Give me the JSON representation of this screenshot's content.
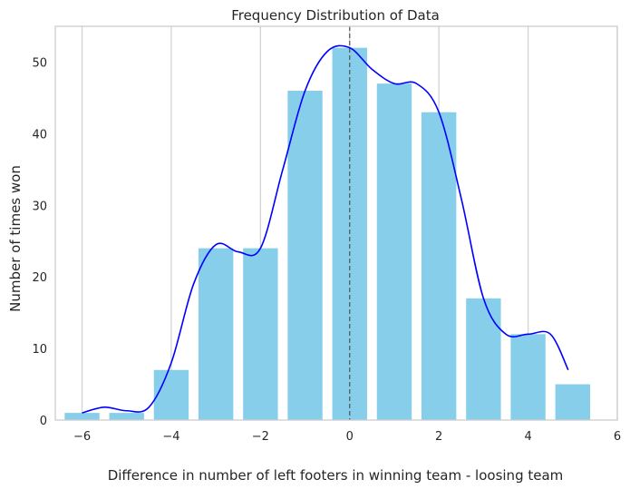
{
  "chart_data": {
    "type": "bar",
    "title": "Frequency Distribution of Data",
    "xlabel": "Difference in number of left footers in winning team - loosing team",
    "ylabel": "Number of times won",
    "x": [
      -6,
      -5,
      -4,
      -3,
      -2,
      -1,
      0,
      1,
      2,
      3,
      4,
      5
    ],
    "values": [
      1,
      1,
      7,
      24,
      24,
      46,
      52,
      47,
      43,
      17,
      12,
      5
    ],
    "xlim": [
      -6.6,
      6
    ],
    "ylim": [
      0,
      55
    ],
    "xticks": [
      -6,
      -4,
      -2,
      0,
      2,
      4,
      6
    ],
    "xtick_labels": [
      "−6",
      "−4",
      "−2",
      "0",
      "2",
      "4",
      "6"
    ],
    "yticks": [
      0,
      10,
      20,
      30,
      40,
      50
    ],
    "ytick_labels": [
      "0",
      "10",
      "20",
      "30",
      "40",
      "50"
    ],
    "grid": "vertical",
    "reference_line_x": 0,
    "kde": {
      "x": [
        -6,
        -5.5,
        -5,
        -4.5,
        -4,
        -3.5,
        -3,
        -2.5,
        -2,
        -1.5,
        -1,
        -0.5,
        0,
        0.5,
        1,
        1.5,
        2,
        2.5,
        3,
        3.5,
        4,
        4.5,
        4.9
      ],
      "y": [
        1,
        1.8,
        1.3,
        1.8,
        8,
        19,
        24.5,
        23.5,
        24,
        35,
        46,
        51.5,
        52,
        49,
        47,
        47,
        43,
        31,
        17,
        12,
        12,
        12,
        7
      ]
    },
    "colors": {
      "bar": "#87ceeb",
      "kde_line": "#0000ff",
      "reference_line": "#555555",
      "grid": "#d3d3d3",
      "frame": "#cccccc"
    }
  }
}
